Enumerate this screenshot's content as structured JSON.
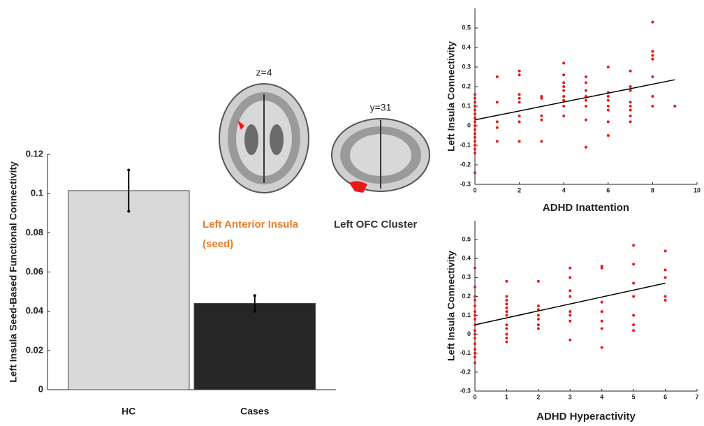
{
  "chart_data": [
    {
      "type": "bar",
      "ylabel": "Left Insula Seed-Based Functional Connectivity",
      "categories": [
        "HC",
        "Cases"
      ],
      "values": [
        0.1015,
        0.044
      ],
      "errors": [
        0.0105,
        0.004
      ],
      "colors": [
        "#d9d9d9",
        "#262626"
      ],
      "error_color": "#000000",
      "ylim": [
        0,
        0.12
      ],
      "yticks": [
        0,
        0.02,
        0.04,
        0.06,
        0.08,
        0.1,
        0.12
      ],
      "grid": false
    },
    {
      "type": "scatter",
      "xlabel": "ADHD Inattention",
      "ylabel": "Left Insula Connectivity",
      "color": "#e8191b",
      "x": [
        0,
        0,
        0,
        0,
        0,
        0,
        0,
        0,
        0,
        0,
        0,
        0,
        0,
        0,
        0,
        0,
        0,
        1,
        1,
        1,
        1,
        1,
        2,
        2,
        2,
        2,
        2,
        2,
        2,
        2,
        3,
        3,
        3,
        3,
        3,
        4,
        4,
        4,
        4,
        4,
        4,
        4,
        4,
        4,
        5,
        5,
        5,
        5,
        5,
        5,
        5,
        5,
        6,
        6,
        6,
        6,
        6,
        6,
        6,
        6,
        7,
        7,
        7,
        7,
        7,
        7,
        7,
        7,
        8,
        8,
        8,
        8,
        8,
        8,
        8,
        9
      ],
      "values": [
        0.16,
        0.14,
        0.12,
        0.1,
        0.08,
        0.06,
        0.04,
        0.02,
        0,
        -0.02,
        -0.04,
        -0.06,
        -0.08,
        -0.1,
        -0.12,
        -0.14,
        -0.24,
        0.25,
        0.12,
        0.02,
        -0.01,
        -0.08,
        0.28,
        0.26,
        0.16,
        0.14,
        0.12,
        0.05,
        0.02,
        -0.08,
        0.15,
        0.14,
        0.05,
        0.03,
        -0.08,
        0.32,
        0.26,
        0.22,
        0.2,
        0.18,
        0.15,
        0.13,
        0.1,
        0.05,
        0.25,
        0.22,
        0.18,
        0.15,
        0.13,
        0.1,
        0.03,
        -0.11,
        0.3,
        0.17,
        0.15,
        0.13,
        0.1,
        0.08,
        -0.05,
        0.02,
        0.28,
        0.2,
        0.18,
        0.12,
        0.1,
        0.08,
        0.05,
        0.02,
        0.53,
        0.38,
        0.36,
        0.34,
        0.25,
        0.15,
        0.1,
        0.1
      ],
      "trend_line": {
        "x": [
          0,
          9
        ],
        "y": [
          0.03,
          0.235
        ],
        "color": "#000000"
      },
      "xlim": [
        0,
        10
      ],
      "xticks": [
        0,
        2,
        4,
        6,
        8,
        10
      ],
      "ylim": [
        -0.3,
        0.6
      ],
      "yticks": [
        -0.3,
        -0.2,
        -0.1,
        0,
        0.1,
        0.2,
        0.3,
        0.4,
        0.5
      ]
    },
    {
      "type": "scatter",
      "xlabel": "ADHD Hyperactivity",
      "ylabel": "Left Insula Connectivity",
      "color": "#e8191b",
      "x": [
        0,
        0,
        0,
        0,
        0,
        0,
        0,
        0,
        0,
        0,
        0,
        0,
        0,
        0,
        0,
        0,
        0,
        1,
        1,
        1,
        1,
        1,
        1,
        1,
        1,
        1,
        1,
        1,
        1,
        2,
        2,
        2,
        2,
        2,
        2,
        2,
        3,
        3,
        3,
        3,
        3,
        3,
        3,
        3,
        4,
        4,
        4,
        4,
        4,
        4,
        4,
        5,
        5,
        5,
        5,
        5,
        5,
        5,
        6,
        6,
        6,
        6,
        6
      ],
      "values": [
        0.35,
        0.25,
        0.2,
        0.18,
        0.15,
        0.12,
        0.1,
        0.08,
        0.05,
        0.02,
        0,
        -0.02,
        -0.05,
        -0.08,
        -0.1,
        -0.12,
        -0.15,
        0.28,
        0.2,
        0.18,
        0.16,
        0.14,
        0.12,
        0.1,
        0.05,
        0.03,
        0,
        -0.02,
        -0.04,
        0.28,
        0.15,
        0.13,
        0.1,
        0.08,
        0.05,
        0.03,
        0.35,
        0.3,
        0.23,
        0.2,
        0.12,
        0.1,
        0.07,
        -0.03,
        0.36,
        0.35,
        0.17,
        0.12,
        0.07,
        0.03,
        -0.07,
        0.47,
        0.37,
        0.27,
        0.2,
        0.1,
        0.05,
        0.02,
        0.44,
        0.34,
        0.3,
        0.2,
        0.18
      ],
      "trend_line": {
        "x": [
          0,
          6
        ],
        "y": [
          0.05,
          0.27
        ],
        "color": "#000000"
      },
      "xlim": [
        0,
        7
      ],
      "xticks": [
        0,
        1,
        2,
        3,
        4,
        5,
        6,
        7
      ],
      "ylim": [
        -0.3,
        0.6
      ],
      "yticks": [
        -0.3,
        -0.2,
        -0.1,
        0,
        0.1,
        0.2,
        0.3,
        0.4,
        0.5
      ]
    }
  ],
  "brain_images": [
    {
      "slice": "z=4",
      "caption_lines": [
        "Left Anterior Insula",
        "(seed)"
      ],
      "caption_color": "#e87d2a"
    },
    {
      "slice": "y=31",
      "caption_lines": [
        "Left OFC Cluster"
      ],
      "caption_color": "#333333"
    }
  ]
}
